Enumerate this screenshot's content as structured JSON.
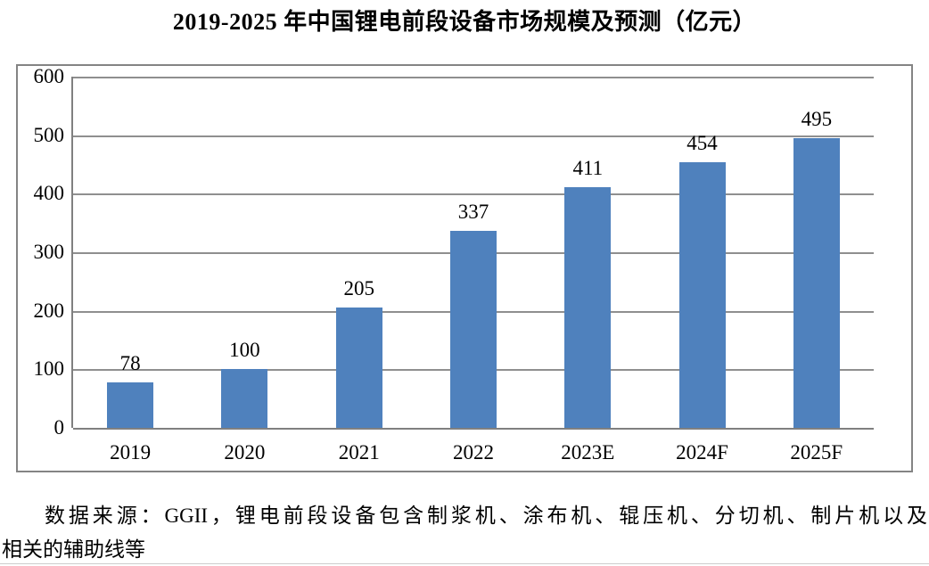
{
  "title": "2019-2025 年中国锂电前段设备市场规模及预测（亿元）",
  "chart_data": {
    "type": "bar",
    "title": "2019-2025 年中国锂电前段设备市场规模及预测（亿元）",
    "categories": [
      "2019",
      "2020",
      "2021",
      "2022",
      "2023E",
      "2024F",
      "2025F"
    ],
    "values": [
      78,
      100,
      205,
      337,
      411,
      454,
      495
    ],
    "xlabel": "",
    "ylabel": "",
    "ylim": [
      0,
      600
    ],
    "yticks": [
      0,
      100,
      200,
      300,
      400,
      500,
      600
    ],
    "grid": true,
    "legend": "none",
    "bar_color": "#4f81bd",
    "gridline_color": "#8f8f8f",
    "plot_border_color": "#848484"
  },
  "source_note": {
    "lines": [
      "数据来源：GGII，锂电前段设备包含制浆机、涂布机、辊压机、分切机、制片机以及",
      "相关的辅助线等"
    ]
  }
}
